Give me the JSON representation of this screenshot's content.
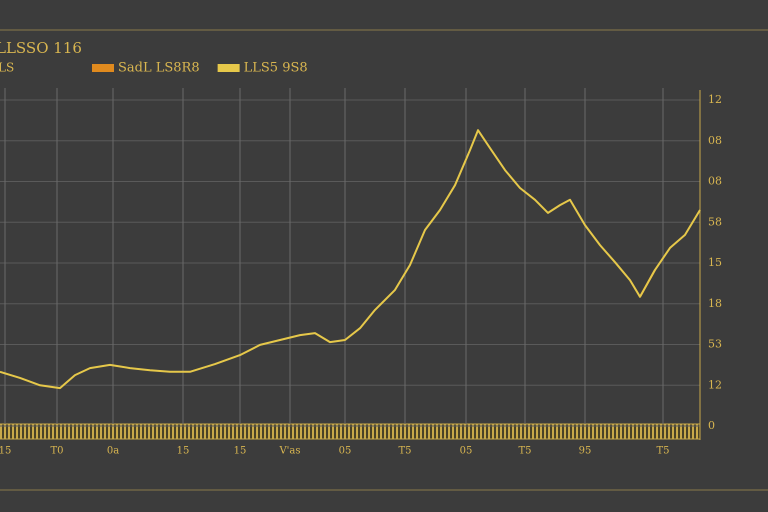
{
  "chart_data": {
    "type": "line",
    "title": "LLSSO 116",
    "subtitle": "LS",
    "x": [
      0,
      20,
      40,
      60,
      75,
      90,
      110,
      130,
      150,
      170,
      190,
      215,
      240,
      260,
      280,
      300,
      315,
      330,
      345,
      360,
      375,
      395,
      410,
      425,
      440,
      455,
      470,
      478,
      490,
      505,
      520,
      535,
      548,
      560,
      570,
      585,
      600,
      615,
      630,
      640,
      655,
      670,
      685,
      700
    ],
    "series": [
      {
        "name": "SadL LS8R8",
        "color": "#e08a1e",
        "values": [
          null,
          null,
          null,
          null,
          null,
          null,
          null,
          null,
          null,
          null,
          null,
          null,
          null,
          null,
          null,
          null,
          null,
          null,
          null,
          null,
          null,
          null,
          null,
          null,
          null,
          null,
          null,
          null,
          null,
          null,
          null,
          null,
          null,
          null,
          null,
          null,
          null,
          null,
          null,
          3.17,
          3.83,
          null,
          null,
          null
        ]
      },
      {
        "name": "LLS5 9S8",
        "color": "#e6c84a",
        "values": [
          1.33,
          1.18,
          1.0,
          0.93,
          1.25,
          1.42,
          1.5,
          1.42,
          1.37,
          1.33,
          1.33,
          1.52,
          1.74,
          1.99,
          2.11,
          2.23,
          2.28,
          2.06,
          2.11,
          2.4,
          2.85,
          3.34,
          3.95,
          4.81,
          5.3,
          5.91,
          6.77,
          7.26,
          6.82,
          6.28,
          5.84,
          5.55,
          5.23,
          5.42,
          5.55,
          4.93,
          4.44,
          4.02,
          3.58,
          3.17,
          3.83,
          4.37,
          4.69,
          5.3
        ]
      }
    ],
    "xlim": [
      0,
      700
    ],
    "xticks": [
      {
        "value": 5,
        "label": "15"
      },
      {
        "value": 57,
        "label": "T0"
      },
      {
        "value": 113,
        "label": "0a"
      },
      {
        "value": 183,
        "label": "15"
      },
      {
        "value": 240,
        "label": "15"
      },
      {
        "value": 290,
        "label": "V'as"
      },
      {
        "value": 345,
        "label": "05"
      },
      {
        "value": 405,
        "label": "T5"
      },
      {
        "value": 466,
        "label": "05"
      },
      {
        "value": 525,
        "label": "T5"
      },
      {
        "value": 585,
        "label": "95"
      },
      {
        "value": 663,
        "label": "T5"
      }
    ],
    "ylim": [
      0,
      8
    ],
    "yticks": [
      0,
      {
        "value": 1,
        "label": "12"
      },
      {
        "value": 2,
        "label": "53"
      },
      {
        "value": 3,
        "label": "18"
      },
      {
        "value": 4,
        "label": "15"
      },
      {
        "value": 5,
        "label": "58"
      },
      {
        "value": 6,
        "label": "08"
      },
      {
        "value": 7,
        "label": "08"
      },
      {
        "value": 8,
        "label": "12"
      }
    ],
    "grid": true
  }
}
